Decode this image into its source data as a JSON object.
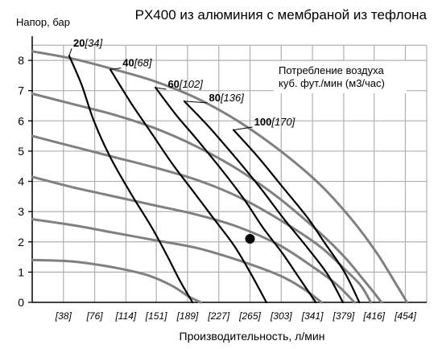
{
  "chart_data": {
    "type": "line",
    "title": "PX400 из алюминия с мембраной из тефлона",
    "ylabel": "Напор, бар",
    "xlabel": "Производительность, л/мин",
    "ylim": [
      0,
      8.8
    ],
    "xlim": [
      0,
      480
    ],
    "y_ticks": [
      "0",
      "1",
      "2",
      "3",
      "4",
      "5",
      "6",
      "7",
      "8"
    ],
    "x_ticks": [
      {
        "value": 38,
        "label": "[38]"
      },
      {
        "value": 76,
        "label": "[76]"
      },
      {
        "value": 114,
        "label": "[114]"
      },
      {
        "value": 151,
        "label": "[151]"
      },
      {
        "value": 189,
        "label": "[189]"
      },
      {
        "value": 227,
        "label": "[227]"
      },
      {
        "value": 265,
        "label": "[265]"
      },
      {
        "value": 303,
        "label": "[303]"
      },
      {
        "value": 341,
        "label": "[341]"
      },
      {
        "value": 379,
        "label": "[379]"
      },
      {
        "value": 416,
        "label": "[416]"
      },
      {
        "value": 454,
        "label": "[454]"
      }
    ],
    "grid": true,
    "legend_note": {
      "line1": "Потребление воздуха",
      "line2": "куб. фут./мин (м3/час)"
    },
    "pressure_curves": [
      {
        "points": [
          [
            0,
            8.3
          ],
          [
            50,
            8.05
          ],
          [
            100,
            7.7
          ],
          [
            150,
            7.3
          ],
          [
            200,
            6.75
          ],
          [
            250,
            6.0
          ],
          [
            300,
            5.05
          ],
          [
            350,
            3.9
          ],
          [
            390,
            2.7
          ],
          [
            420,
            1.6
          ],
          [
            445,
            0.5
          ],
          [
            456,
            0
          ]
        ]
      },
      {
        "points": [
          [
            0,
            6.9
          ],
          [
            50,
            6.55
          ],
          [
            100,
            6.2
          ],
          [
            150,
            5.75
          ],
          [
            200,
            5.15
          ],
          [
            250,
            4.4
          ],
          [
            300,
            3.45
          ],
          [
            350,
            2.3
          ],
          [
            380,
            1.5
          ],
          [
            400,
            0.85
          ],
          [
            415,
            0.35
          ],
          [
            425,
            0
          ]
        ]
      },
      {
        "points": [
          [
            0,
            5.5
          ],
          [
            50,
            5.15
          ],
          [
            100,
            4.8
          ],
          [
            150,
            4.45
          ],
          [
            200,
            4.05
          ],
          [
            250,
            3.5
          ],
          [
            300,
            2.75
          ],
          [
            350,
            1.85
          ],
          [
            380,
            1.1
          ],
          [
            400,
            0.55
          ],
          [
            412,
            0
          ]
        ]
      },
      {
        "points": [
          [
            0,
            4.15
          ],
          [
            50,
            3.8
          ],
          [
            100,
            3.5
          ],
          [
            150,
            3.2
          ],
          [
            200,
            2.9
          ],
          [
            250,
            2.5
          ],
          [
            300,
            1.9
          ],
          [
            340,
            1.2
          ],
          [
            370,
            0.6
          ],
          [
            392,
            0
          ]
        ]
      },
      {
        "points": [
          [
            0,
            2.75
          ],
          [
            50,
            2.55
          ],
          [
            100,
            2.3
          ],
          [
            150,
            2.05
          ],
          [
            200,
            1.8
          ],
          [
            250,
            1.4
          ],
          [
            300,
            0.9
          ],
          [
            330,
            0.45
          ],
          [
            352,
            0
          ]
        ]
      },
      {
        "points": [
          [
            0,
            1.4
          ],
          [
            50,
            1.35
          ],
          [
            100,
            1.15
          ],
          [
            140,
            0.9
          ],
          [
            170,
            0.55
          ],
          [
            190,
            0.2
          ],
          [
            205,
            0
          ]
        ]
      }
    ],
    "series": [
      {
        "name_bold": "20",
        "name_italic": "[34]",
        "label_at": [
          50,
          8.45
        ],
        "points": [
          [
            45,
            8.15
          ],
          [
            60,
            7.2
          ],
          [
            75,
            6.0
          ],
          [
            95,
            4.8
          ],
          [
            120,
            3.6
          ],
          [
            145,
            2.5
          ],
          [
            165,
            1.5
          ],
          [
            180,
            0.7
          ],
          [
            195,
            0
          ]
        ]
      },
      {
        "name_bold": "40",
        "name_italic": "[68]",
        "label_at": [
          110,
          7.8
        ],
        "points": [
          [
            95,
            7.7
          ],
          [
            120,
            6.6
          ],
          [
            145,
            5.6
          ],
          [
            170,
            4.6
          ],
          [
            195,
            3.7
          ],
          [
            220,
            2.8
          ],
          [
            245,
            1.9
          ],
          [
            265,
            1.0
          ],
          [
            285,
            0
          ]
        ]
      },
      {
        "name_bold": "60",
        "name_italic": "[102]",
        "label_at": [
          165,
          7.1
        ],
        "points": [
          [
            150,
            7.1
          ],
          [
            175,
            6.2
          ],
          [
            200,
            5.4
          ],
          [
            230,
            4.4
          ],
          [
            258,
            3.4
          ],
          [
            280,
            2.5
          ],
          [
            305,
            1.6
          ],
          [
            325,
            0.8
          ],
          [
            345,
            0
          ]
        ]
      },
      {
        "name_bold": "80",
        "name_italic": "[136]",
        "label_at": [
          215,
          6.65
        ],
        "points": [
          [
            185,
            6.65
          ],
          [
            215,
            5.8
          ],
          [
            250,
            4.7
          ],
          [
            280,
            3.7
          ],
          [
            305,
            2.8
          ],
          [
            335,
            1.8
          ],
          [
            360,
            0.9
          ],
          [
            378,
            0
          ]
        ]
      },
      {
        "name_bold": "100",
        "name_italic": "[170]",
        "label_at": [
          270,
          5.85
        ],
        "points": [
          [
            245,
            5.7
          ],
          [
            275,
            4.8
          ],
          [
            305,
            3.8
          ],
          [
            335,
            2.8
          ],
          [
            355,
            2.0
          ],
          [
            380,
            1.0
          ],
          [
            398,
            0
          ]
        ]
      }
    ],
    "marker": {
      "x": 265,
      "y": 2.1
    }
  },
  "colors": {
    "grid": "#b0b0b0",
    "pressure_curve": "#808080",
    "air_curve": "#000000",
    "marker": "#000000"
  }
}
